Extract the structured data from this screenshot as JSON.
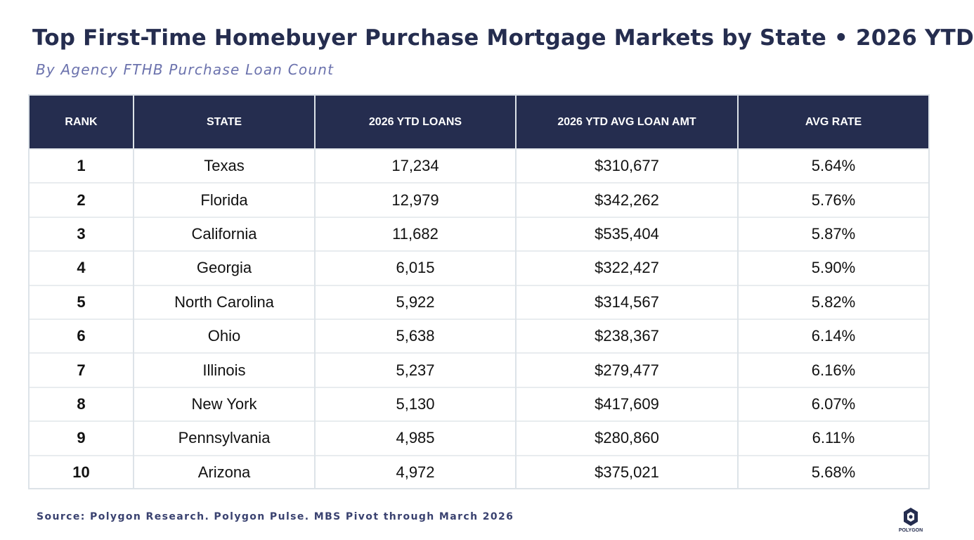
{
  "title": "Top First-Time Homebuyer Purchase Mortgage Markets by State • 2026 YTD",
  "subtitle": "By Agency FTHB Purchase Loan Count",
  "source": "Source: Polygon Research. Polygon Pulse. MBS Pivot through March 2026",
  "logo": {
    "icon": "polygon-hexagon-icon",
    "text": "POLYGON"
  },
  "colors": {
    "header_bg": "#252d4f",
    "subtitle": "#6b72ad",
    "border": "#dde3e8"
  },
  "chart_data": {
    "type": "table",
    "columns": [
      "RANK",
      "STATE",
      "2026 YTD LOANS",
      "2026 YTD AVG LOAN AMT",
      "AVG RATE"
    ],
    "rows": [
      [
        "1",
        "Texas",
        "17,234",
        "$310,677",
        "5.64%"
      ],
      [
        "2",
        "Florida",
        "12,979",
        "$342,262",
        "5.76%"
      ],
      [
        "3",
        "California",
        "11,682",
        "$535,404",
        "5.87%"
      ],
      [
        "4",
        "Georgia",
        "6,015",
        "$322,427",
        "5.90%"
      ],
      [
        "5",
        "North Carolina",
        "5,922",
        "$314,567",
        "5.82%"
      ],
      [
        "6",
        "Ohio",
        "5,638",
        "$238,367",
        "6.14%"
      ],
      [
        "7",
        "Illinois",
        "5,237",
        "$279,477",
        "6.16%"
      ],
      [
        "8",
        "New York",
        "5,130",
        "$417,609",
        "6.07%"
      ],
      [
        "9",
        "Pennsylvania",
        "4,985",
        "$280,860",
        "6.11%"
      ],
      [
        "10",
        "Arizona",
        "4,972",
        "$375,021",
        "5.68%"
      ]
    ]
  }
}
